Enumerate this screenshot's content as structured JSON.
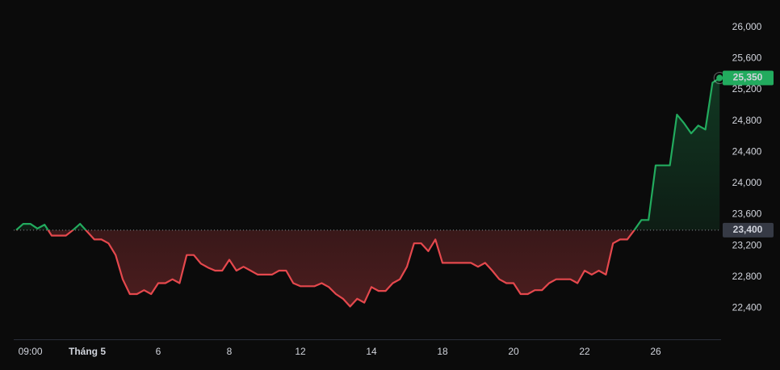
{
  "chart_data": {
    "type": "baseline",
    "categories": [
      null,
      null,
      "09:00",
      null,
      null,
      null,
      null,
      null,
      null,
      null,
      "Tháng 5",
      null,
      null,
      null,
      null,
      null,
      null,
      null,
      null,
      null,
      "6",
      null,
      null,
      null,
      null,
      null,
      null,
      null,
      null,
      null,
      "8",
      null,
      null,
      null,
      null,
      null,
      null,
      null,
      null,
      null,
      "12",
      null,
      null,
      null,
      null,
      null,
      null,
      null,
      null,
      null,
      "14",
      null,
      null,
      null,
      null,
      null,
      null,
      null,
      null,
      null,
      "18",
      null,
      null,
      null,
      null,
      null,
      null,
      null,
      null,
      null,
      "20",
      null,
      null,
      null,
      null,
      null,
      null,
      null,
      null,
      null,
      "22",
      null,
      null,
      null,
      null,
      null,
      null,
      null,
      null,
      null,
      "26",
      null,
      null,
      null,
      null,
      null,
      null,
      null,
      null,
      null
    ],
    "series": [
      {
        "up_color": "#22ab5e",
        "down_color": "#e5484d",
        "values": [
          23400,
          23480,
          23480,
          23420,
          23470,
          23330,
          23330,
          23330,
          23400,
          23480,
          23380,
          23280,
          23280,
          23230,
          23080,
          22770,
          22580,
          22580,
          22630,
          22580,
          22720,
          22720,
          22770,
          22720,
          23080,
          23080,
          22970,
          22920,
          22880,
          22880,
          23020,
          22880,
          22930,
          22880,
          22830,
          22830,
          22830,
          22880,
          22880,
          22720,
          22680,
          22680,
          22680,
          22720,
          22670,
          22580,
          22520,
          22420,
          22520,
          22470,
          22670,
          22620,
          22620,
          22720,
          22770,
          22930,
          23230,
          23230,
          23130,
          23280,
          22980,
          22980,
          22980,
          22980,
          22980,
          22930,
          22980,
          22880,
          22770,
          22720,
          22720,
          22580,
          22580,
          22630,
          22630,
          22720,
          22770,
          22770,
          22770,
          22720,
          22880,
          22830,
          22880,
          22830,
          23230,
          23280,
          23280,
          23400,
          23530,
          23530,
          24230,
          24230,
          24230,
          24880,
          24770,
          24640,
          24740,
          24690,
          25290,
          25350
        ],
        "value_labels": [
          null,
          null,
          null,
          null,
          null,
          null,
          null,
          null,
          null,
          null,
          null,
          null,
          null,
          null,
          null,
          null,
          null,
          null,
          null,
          null,
          null,
          null,
          null,
          null,
          null,
          null,
          null,
          null,
          null,
          null,
          null,
          null,
          null,
          null,
          null,
          null,
          null,
          null,
          null,
          null,
          null,
          null,
          null,
          null,
          null,
          null,
          null,
          null,
          null,
          null,
          null,
          null,
          null,
          null,
          null,
          null,
          null,
          null,
          null,
          null,
          null,
          null,
          null,
          null,
          null,
          null,
          null,
          null,
          null,
          null,
          null,
          null,
          null,
          null,
          null,
          null,
          null,
          null,
          null,
          null,
          null,
          null,
          null,
          null,
          null,
          null,
          null,
          null,
          null,
          null,
          null,
          null,
          null,
          null,
          null,
          null,
          null,
          null,
          null,
          "25,350"
        ]
      }
    ],
    "baseline": {
      "value": 23400,
      "label": "23,400"
    },
    "ylim": [
      22000,
      26350
    ],
    "yticks": [
      {
        "value": 22400,
        "label": "22,400"
      },
      {
        "value": 22800,
        "label": "22,800"
      },
      {
        "value": 23200,
        "label": "23,200"
      },
      {
        "value": 23600,
        "label": "23,600"
      },
      {
        "value": 24000,
        "label": "24,000"
      },
      {
        "value": 24400,
        "label": "24,400"
      },
      {
        "value": 24800,
        "label": "24,800"
      },
      {
        "value": 25200,
        "label": "25,200"
      },
      {
        "value": 25600,
        "label": "25,600"
      },
      {
        "value": 26000,
        "label": "26,000"
      }
    ]
  }
}
